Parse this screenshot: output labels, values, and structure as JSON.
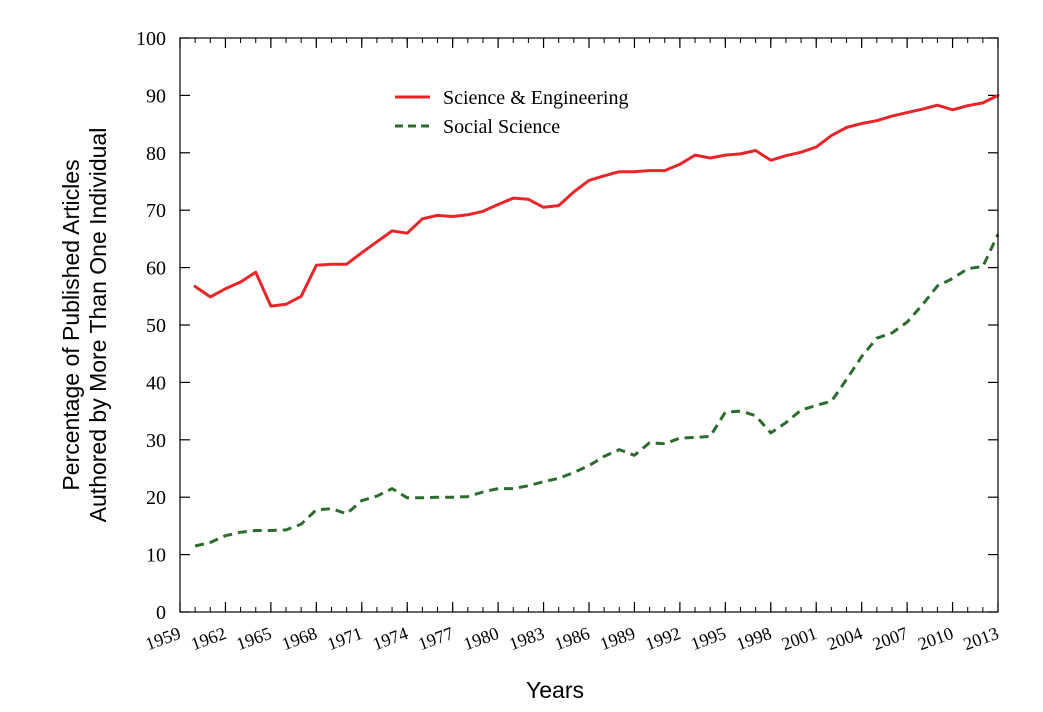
{
  "chart_data": {
    "type": "line",
    "xlabel": "Years",
    "ylabel": [
      "Percentage of Published Articles",
      "Authored by More Than One Individual"
    ],
    "ylim": [
      0,
      100
    ],
    "xlim": [
      1959,
      2013
    ],
    "y_ticks": [
      0,
      10,
      20,
      30,
      40,
      50,
      60,
      70,
      80,
      90,
      100
    ],
    "x_tick_labels": [
      "1959",
      "1962",
      "1965",
      "1968",
      "1971",
      "1974",
      "1977",
      "1980",
      "1983",
      "1986",
      "1989",
      "1992",
      "1995",
      "1998",
      "2001",
      "2004",
      "2007",
      "2010",
      "2013"
    ],
    "grid": false,
    "legend_position": "top-center",
    "series": [
      {
        "name": "Science & Engineering",
        "color": "#e8262a",
        "dash": "solid",
        "points": [
          [
            1960,
            56.7
          ],
          [
            1961,
            54.9
          ],
          [
            1962,
            56.3
          ],
          [
            1963,
            57.5
          ],
          [
            1964,
            59.2
          ],
          [
            1965,
            53.3
          ],
          [
            1966,
            53.6
          ],
          [
            1967,
            55.0
          ],
          [
            1968,
            60.4
          ],
          [
            1969,
            60.6
          ],
          [
            1970,
            60.6
          ],
          [
            1971,
            62.6
          ],
          [
            1972,
            64.5
          ],
          [
            1973,
            66.4
          ],
          [
            1974,
            66.0
          ],
          [
            1975,
            68.5
          ],
          [
            1976,
            69.1
          ],
          [
            1977,
            68.9
          ],
          [
            1978,
            69.2
          ],
          [
            1979,
            69.8
          ],
          [
            1980,
            71.0
          ],
          [
            1981,
            72.1
          ],
          [
            1982,
            71.9
          ],
          [
            1983,
            70.5
          ],
          [
            1984,
            70.8
          ],
          [
            1985,
            73.2
          ],
          [
            1986,
            75.2
          ],
          [
            1987,
            76.0
          ],
          [
            1988,
            76.7
          ],
          [
            1989,
            76.7
          ],
          [
            1990,
            76.9
          ],
          [
            1991,
            76.9
          ],
          [
            1992,
            78.0
          ],
          [
            1993,
            79.6
          ],
          [
            1994,
            79.1
          ],
          [
            1995,
            79.6
          ],
          [
            1996,
            79.8
          ],
          [
            1997,
            80.4
          ],
          [
            1998,
            78.7
          ],
          [
            1999,
            79.5
          ],
          [
            2000,
            80.1
          ],
          [
            2001,
            81.0
          ],
          [
            2002,
            83.0
          ],
          [
            2003,
            84.4
          ],
          [
            2004,
            85.1
          ],
          [
            2005,
            85.6
          ],
          [
            2006,
            86.4
          ],
          [
            2007,
            87.0
          ],
          [
            2008,
            87.6
          ],
          [
            2009,
            88.3
          ],
          [
            2010,
            87.5
          ],
          [
            2011,
            88.2
          ],
          [
            2012,
            88.7
          ],
          [
            2013,
            90.0
          ]
        ]
      },
      {
        "name": "Social Science",
        "color": "#2e6b2e",
        "dash": "dashed",
        "points": [
          [
            1960,
            11.5
          ],
          [
            1961,
            12.1
          ],
          [
            1962,
            13.3
          ],
          [
            1963,
            13.9
          ],
          [
            1964,
            14.2
          ],
          [
            1965,
            14.2
          ],
          [
            1966,
            14.3
          ],
          [
            1967,
            15.3
          ],
          [
            1968,
            17.8
          ],
          [
            1969,
            18.0
          ],
          [
            1970,
            17.1
          ],
          [
            1971,
            19.4
          ],
          [
            1972,
            20.2
          ],
          [
            1973,
            21.5
          ],
          [
            1974,
            19.9
          ],
          [
            1975,
            19.9
          ],
          [
            1976,
            20.0
          ],
          [
            1977,
            20.0
          ],
          [
            1978,
            20.1
          ],
          [
            1979,
            20.9
          ],
          [
            1980,
            21.5
          ],
          [
            1981,
            21.5
          ],
          [
            1982,
            22.0
          ],
          [
            1983,
            22.7
          ],
          [
            1984,
            23.3
          ],
          [
            1985,
            24.3
          ],
          [
            1986,
            25.5
          ],
          [
            1987,
            27.1
          ],
          [
            1988,
            28.3
          ],
          [
            1989,
            27.3
          ],
          [
            1990,
            29.5
          ],
          [
            1991,
            29.3
          ],
          [
            1992,
            30.3
          ],
          [
            1993,
            30.4
          ],
          [
            1994,
            30.6
          ],
          [
            1995,
            34.8
          ],
          [
            1996,
            35.0
          ],
          [
            1997,
            34.2
          ],
          [
            1998,
            31.2
          ],
          [
            1999,
            33.0
          ],
          [
            2000,
            35.2
          ],
          [
            2001,
            36.0
          ],
          [
            2002,
            36.7
          ],
          [
            2003,
            40.5
          ],
          [
            2004,
            44.5
          ],
          [
            2005,
            47.7
          ],
          [
            2006,
            48.6
          ],
          [
            2007,
            50.5
          ],
          [
            2008,
            53.5
          ],
          [
            2009,
            56.8
          ],
          [
            2010,
            58.1
          ],
          [
            2011,
            59.8
          ],
          [
            2012,
            60.2
          ],
          [
            2013,
            65.8
          ]
        ]
      }
    ]
  }
}
